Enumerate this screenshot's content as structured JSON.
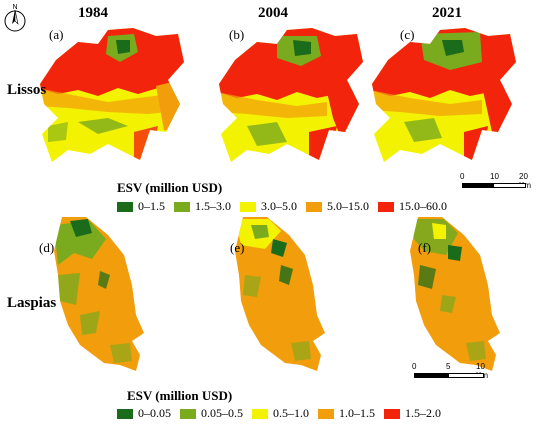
{
  "north_arrow": {
    "label": "N"
  },
  "years": [
    "1984",
    "2004",
    "2021"
  ],
  "panels_top": [
    "(a)",
    "(b)",
    "(c)"
  ],
  "panels_bottom": [
    "(d)",
    "(e)",
    "(f)"
  ],
  "regions": {
    "top": "Lissos",
    "bottom": "Laspias"
  },
  "legend_top": {
    "title": "ESV (million USD)",
    "items": [
      {
        "label": "0–1.5",
        "color": "#1a6b1a"
      },
      {
        "label": "1.5–3.0",
        "color": "#7aaa1e"
      },
      {
        "label": "3.0–5.0",
        "color": "#f3f200"
      },
      {
        "label": "5.0–15.0",
        "color": "#f29d0c"
      },
      {
        "label": "15.0–60.0",
        "color": "#f2240c"
      }
    ]
  },
  "legend_bottom": {
    "title": "ESV (million USD)",
    "items": [
      {
        "label": "0–0.05",
        "color": "#1a6b1a"
      },
      {
        "label": "0.05–0.5",
        "color": "#7aaa1e"
      },
      {
        "label": "0.5–1.0",
        "color": "#f3f200"
      },
      {
        "label": "1.0–1.5",
        "color": "#f29d0c"
      },
      {
        "label": "1.5–2.0",
        "color": "#f2240c"
      }
    ]
  },
  "scalebar_top": {
    "ticks": [
      "0",
      "10",
      "20 Km"
    ]
  },
  "scalebar_bottom": {
    "ticks": [
      "0",
      "5",
      "10 Km"
    ]
  }
}
